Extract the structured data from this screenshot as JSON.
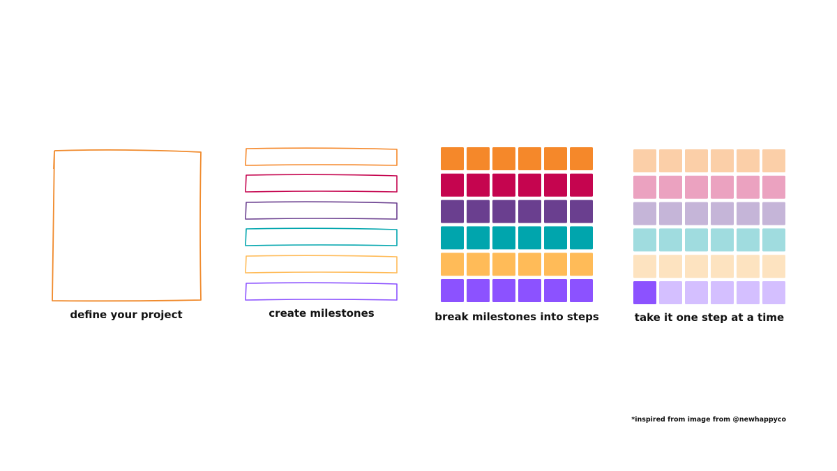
{
  "panels": [
    {
      "caption": "define your project"
    },
    {
      "caption": "create milestones"
    },
    {
      "caption": "break milestones into steps"
    },
    {
      "caption": "take it one step at a time"
    }
  ],
  "footnote": "*inspired from image from @newhappyco"
}
